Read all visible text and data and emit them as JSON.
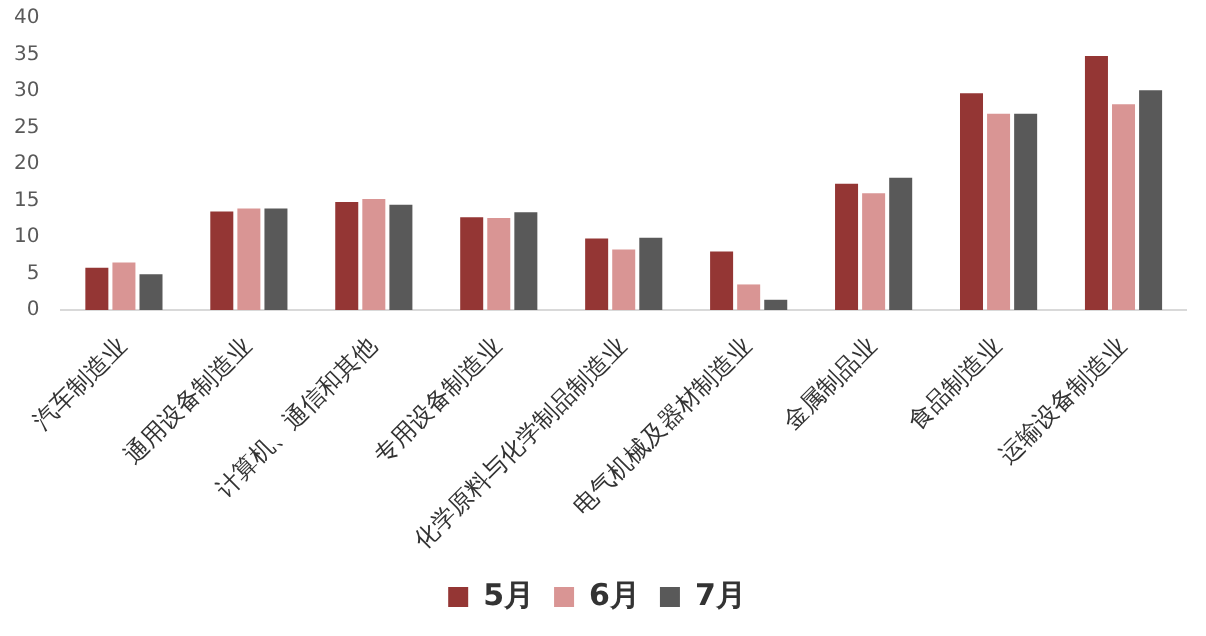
{
  "chart_data": {
    "type": "bar",
    "categories": [
      "汽车制造业",
      "通用设备制造业",
      "计算机、通信和其他",
      "专用设备制造业",
      "化学原料与化学制品制造业",
      "电气机械及器材制造业",
      "金属制品业",
      "食品制造业",
      "运输设备制造业"
    ],
    "series": [
      {
        "name": "5月",
        "color": "#943634",
        "values": [
          5.8,
          13.5,
          14.8,
          12.7,
          9.8,
          8.0,
          17.3,
          29.7,
          34.8
        ]
      },
      {
        "name": "6月",
        "color": "#d99594",
        "values": [
          6.5,
          13.9,
          15.2,
          12.6,
          8.3,
          3.5,
          16.0,
          26.9,
          28.2
        ]
      },
      {
        "name": "7月",
        "color": "#595959",
        "values": [
          4.9,
          13.9,
          14.4,
          13.4,
          9.9,
          1.4,
          18.1,
          26.9,
          30.1
        ]
      }
    ],
    "ylim": [
      0,
      40
    ],
    "yticks": [
      0,
      5,
      10,
      15,
      20,
      25,
      30,
      35,
      40
    ],
    "grid": false,
    "legend": "bottom"
  }
}
